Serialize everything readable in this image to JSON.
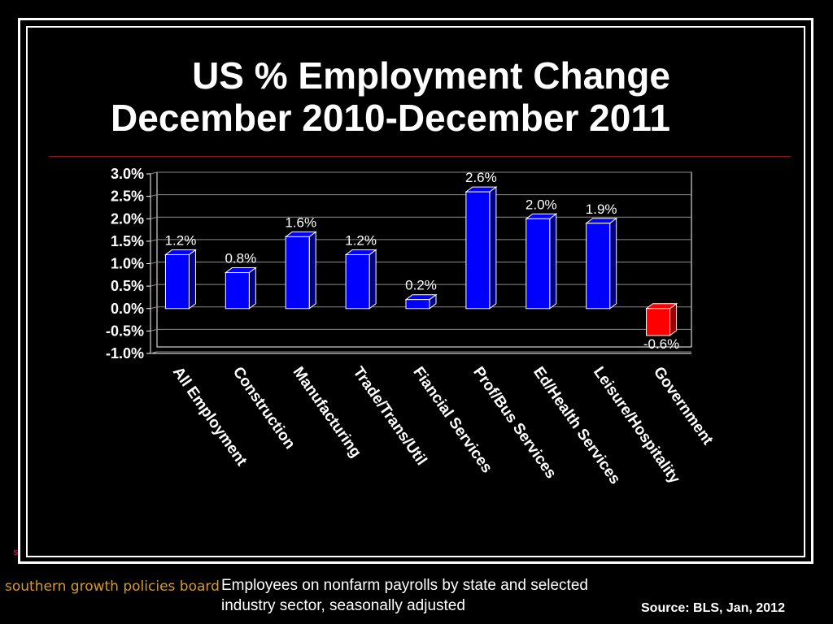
{
  "slide": {
    "title_line1": "US % Employment Change",
    "title_line2": "December 2010-December 2011",
    "footnote": "Employees on nonfarm payrolls by state and selected industry sector, seasonally adjusted",
    "source": "Source: BLS, Jan, 2012",
    "logo_text": "southern growth policies board",
    "logo_mark": "s"
  },
  "colors": {
    "background": "#000000",
    "positive_bar": "#0000ff",
    "negative_bar": "#ff0000",
    "logo": "#d49b2a",
    "divider": "#8b1a1a"
  },
  "chart_data": {
    "type": "bar",
    "title": "",
    "xlabel": "",
    "ylabel": "",
    "ylim": [
      -1.0,
      3.0
    ],
    "yticks": [
      "3.0%",
      "2.5%",
      "2.0%",
      "1.5%",
      "1.0%",
      "0.5%",
      "0.0%",
      "-0.5%",
      "-1.0%"
    ],
    "categories": [
      "All Employment",
      "Construction",
      "Manufacturing",
      "Trade/Trans/Util",
      "Fiancial Services",
      "Prof/Bus Services",
      "Ed/Health Services",
      "Leisure/Hospitality",
      "Government"
    ],
    "values": [
      1.2,
      0.8,
      1.6,
      1.2,
      0.2,
      2.6,
      2.0,
      1.9,
      -0.6
    ],
    "data_labels": [
      "1.2%",
      "0.8%",
      "1.6%",
      "1.2%",
      "0.2%",
      "2.6%",
      "2.0%",
      "1.9%",
      "-0.6%"
    ],
    "grid": true,
    "legend": "none",
    "style": "3d"
  }
}
